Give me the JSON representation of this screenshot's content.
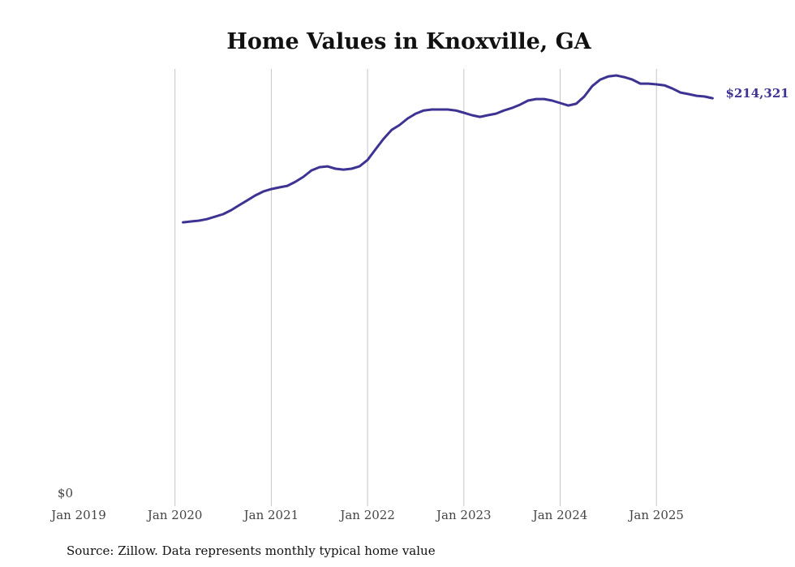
{
  "chart_data": {
    "type": "line",
    "title": "Home Values in Knoxville, GA",
    "xlabel": "",
    "ylabel": "",
    "x_ticks": [
      "Jan 2019",
      "Jan 2020",
      "Jan 2021",
      "Jan 2022",
      "Jan 2023",
      "Jan 2024",
      "Jan 2025"
    ],
    "y_ticks": [
      "$0"
    ],
    "ylim": [
      0,
      229700
    ],
    "xlim": [
      "2019-01",
      "2025-10"
    ],
    "grid": "vertical",
    "line_color": "#3d3393",
    "end_label": "$214,321",
    "source": "Source: Zillow. Data represents monthly typical home value",
    "series": [
      {
        "name": "Home value",
        "start": "2020-02",
        "values": [
          149100,
          149600,
          150000,
          150800,
          152100,
          153400,
          155500,
          158100,
          160600,
          163200,
          165300,
          166600,
          167500,
          168300,
          170400,
          173000,
          176400,
          178100,
          178500,
          177300,
          176800,
          177300,
          178500,
          181900,
          187500,
          193000,
          197700,
          200300,
          203700,
          206200,
          207900,
          208400,
          208400,
          208400,
          207900,
          206700,
          205400,
          204500,
          205400,
          206200,
          207900,
          209200,
          210900,
          213100,
          213900,
          213900,
          213100,
          211800,
          210500,
          211400,
          215200,
          220700,
          224100,
          225800,
          226300,
          225400,
          224100,
          222000,
          222000,
          221600,
          221100,
          219400,
          217300,
          216500,
          215600,
          215200,
          214321
        ]
      }
    ]
  }
}
